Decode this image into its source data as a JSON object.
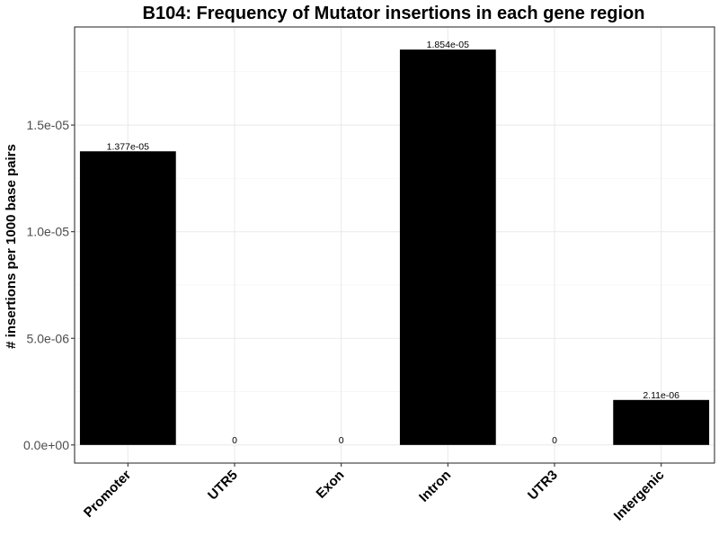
{
  "chart_data": {
    "type": "bar",
    "title": "B104: Frequency of Mutator insertions in each gene region",
    "xlabel": "",
    "ylabel": "# insertions per 1000 base pairs",
    "categories": [
      "Promoter",
      "UTR5",
      "Exon",
      "Intron",
      "UTR3",
      "Intergenic"
    ],
    "values": [
      1.377e-05,
      0,
      0,
      1.854e-05,
      0,
      2.11e-06
    ],
    "data_labels": [
      "1.377e-05",
      "0",
      "0",
      "1.854e-05",
      "0",
      "2.11e-06"
    ],
    "yticks": [
      0,
      5e-06,
      1e-05,
      1.5e-05
    ],
    "ytick_labels": [
      "0.0e+00",
      "5.0e-06",
      "1.0e-05",
      "1.5e-05"
    ],
    "ylim": [
      -8.5e-07,
      1.96e-05
    ],
    "bar_color": "#000000",
    "grid": true,
    "legend": "none"
  }
}
